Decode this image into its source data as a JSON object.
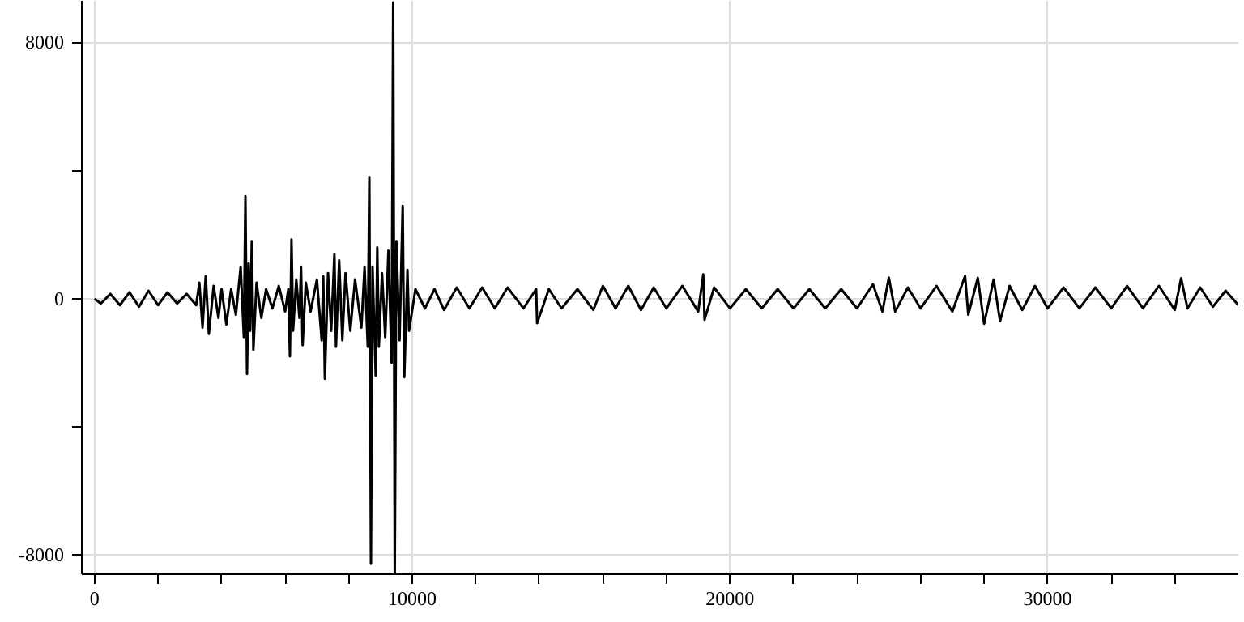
{
  "chart_data": {
    "type": "line",
    "color": "#000000",
    "x": [
      0,
      200,
      500,
      800,
      1100,
      1400,
      1700,
      2000,
      2300,
      2600,
      2900,
      3200,
      3300,
      3400,
      3500,
      3600,
      3750,
      3900,
      4000,
      4150,
      4300,
      4450,
      4600,
      4700,
      4750,
      4800,
      4850,
      4900,
      4950,
      5000,
      5100,
      5250,
      5400,
      5600,
      5800,
      6000,
      6100,
      6150,
      6200,
      6250,
      6350,
      6450,
      6500,
      6550,
      6650,
      6800,
      7000,
      7150,
      7200,
      7250,
      7350,
      7450,
      7550,
      7600,
      7700,
      7800,
      7900,
      8050,
      8200,
      8400,
      8500,
      8600,
      8650,
      8700,
      8750,
      8850,
      8900,
      8950,
      9050,
      9150,
      9250,
      9350,
      9400,
      9450,
      9500,
      9600,
      9700,
      9750,
      9850,
      9900,
      10100,
      10400,
      10700,
      11000,
      11400,
      11800,
      12200,
      12600,
      13000,
      13500,
      13900,
      13930,
      14300,
      14700,
      15200,
      15700,
      16000,
      16400,
      16800,
      17200,
      17600,
      18000,
      18500,
      19000,
      19160,
      19200,
      19500,
      20000,
      20500,
      21000,
      21500,
      22000,
      22500,
      23000,
      23500,
      24000,
      24500,
      24800,
      25000,
      25200,
      25600,
      26000,
      26500,
      27000,
      27400,
      27500,
      27800,
      28000,
      28300,
      28500,
      28800,
      29200,
      29600,
      30000,
      30500,
      31000,
      31500,
      32000,
      32500,
      33000,
      33500,
      34000,
      34200,
      34400,
      34800,
      35200,
      35600,
      36000
    ],
    "values": [
      0,
      -150,
      150,
      -200,
      200,
      -250,
      250,
      -200,
      200,
      -150,
      150,
      -200,
      500,
      -900,
      700,
      -1100,
      400,
      -600,
      300,
      -800,
      300,
      -500,
      1000,
      -1200,
      3200,
      -2350,
      1100,
      -1000,
      1800,
      -1600,
      500,
      -600,
      300,
      -300,
      400,
      -400,
      300,
      -1800,
      1850,
      -1000,
      600,
      -600,
      1000,
      -1450,
      500,
      -400,
      600,
      -1300,
      700,
      -2500,
      800,
      -1000,
      1400,
      -1500,
      1200,
      -1300,
      800,
      -1000,
      600,
      -900,
      1000,
      -1500,
      3800,
      -8280,
      1000,
      -2400,
      1600,
      -1500,
      800,
      -1200,
      1500,
      -2000,
      9250,
      -8590,
      1800,
      -1300,
      2900,
      -2450,
      900,
      -1000,
      300,
      -300,
      300,
      -350,
      350,
      -300,
      350,
      -300,
      350,
      -300,
      300,
      -760,
      300,
      -300,
      300,
      -350,
      400,
      -300,
      400,
      -350,
      350,
      -300,
      400,
      -400,
      760,
      -660,
      350,
      -300,
      300,
      -300,
      300,
      -300,
      300,
      -300,
      300,
      -300,
      450,
      -400,
      660,
      -400,
      350,
      -300,
      400,
      -400,
      710,
      -500,
      650,
      -780,
      600,
      -700,
      400,
      -350,
      400,
      -300,
      350,
      -300,
      350,
      -300,
      400,
      -300,
      400,
      -350,
      640,
      -300,
      350,
      -250,
      250,
      -200
    ],
    "xlim": [
      -400,
      36000
    ],
    "ylim": [
      -8600,
      9300
    ],
    "xticks": [
      0,
      {
        "value": 2000,
        "label": null
      },
      {
        "value": 4000,
        "label": null
      },
      {
        "value": 6000,
        "label": null
      },
      {
        "value": 8000,
        "label": null
      },
      10000,
      {
        "value": 12000,
        "label": null
      },
      {
        "value": 14000,
        "label": null
      },
      {
        "value": 16000,
        "label": null
      },
      {
        "value": 18000,
        "label": null
      },
      20000,
      {
        "value": 22000,
        "label": null
      },
      {
        "value": 24000,
        "label": null
      },
      {
        "value": 26000,
        "label": null
      },
      {
        "value": 28000,
        "label": null
      },
      30000,
      {
        "value": 32000,
        "label": null
      },
      {
        "value": 34000,
        "label": null
      }
    ],
    "yticks": [
      -8000,
      {
        "value": -4000,
        "label": null
      },
      0,
      {
        "value": 4000,
        "label": null
      },
      8000
    ],
    "grid": true
  }
}
